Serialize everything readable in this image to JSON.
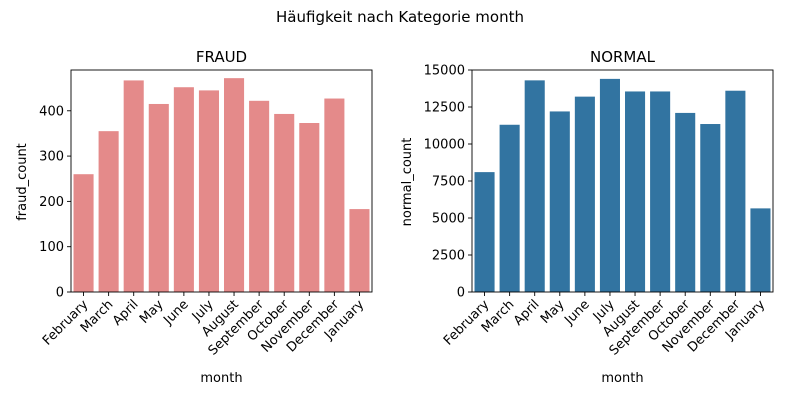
{
  "figure": {
    "suptitle": "Häufigkeit nach Kategorie month"
  },
  "chart_data": [
    {
      "type": "bar",
      "title": "FRAUD",
      "xlabel": "month",
      "ylabel": "fraud_count",
      "categories": [
        "February",
        "March",
        "April",
        "May",
        "June",
        "July",
        "August",
        "September",
        "October",
        "November",
        "December",
        "January"
      ],
      "values": [
        260,
        355,
        467,
        415,
        452,
        445,
        472,
        422,
        393,
        373,
        427,
        183
      ],
      "ylim": [
        0,
        490
      ],
      "yticks": [
        0,
        100,
        200,
        300,
        400
      ],
      "ytick_labels": [
        "0",
        "100",
        "200",
        "300",
        "400"
      ],
      "bar_color": "#e48a8a",
      "grid": false,
      "legend": "none"
    },
    {
      "type": "bar",
      "title": "NORMAL",
      "xlabel": "month",
      "ylabel": "normal_count",
      "categories": [
        "February",
        "March",
        "April",
        "May",
        "June",
        "July",
        "August",
        "September",
        "October",
        "November",
        "December",
        "January"
      ],
      "values": [
        8100,
        11300,
        14300,
        12200,
        13200,
        14400,
        13550,
        13550,
        12100,
        11350,
        13600,
        5650
      ],
      "ylim": [
        0,
        15000
      ],
      "yticks": [
        0,
        2500,
        5000,
        7500,
        10000,
        12500,
        15000
      ],
      "ytick_labels": [
        "0",
        "2500",
        "5000",
        "7500",
        "10000",
        "12500",
        "15000"
      ],
      "bar_color": "#3274a1",
      "grid": false,
      "legend": "none"
    }
  ]
}
